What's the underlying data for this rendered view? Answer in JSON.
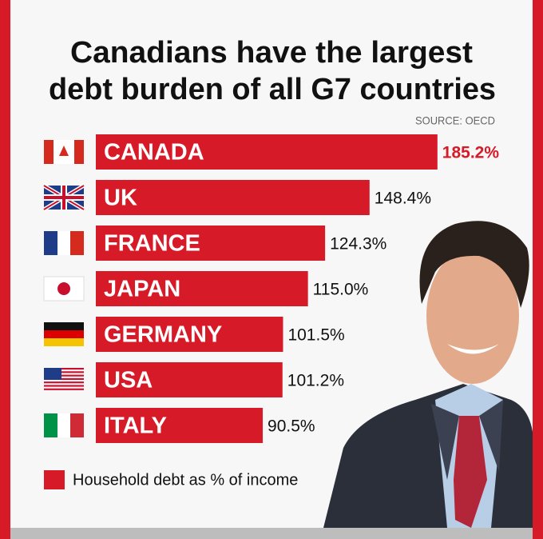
{
  "chart_data": {
    "type": "bar",
    "orientation": "horizontal",
    "title": [
      "Canadians have the largest",
      "debt burden of all G7 countries"
    ],
    "source": "SOURCE: OECD",
    "categories": [
      "CANADA",
      "UK",
      "FRANCE",
      "JAPAN",
      "GERMANY",
      "USA",
      "ITALY"
    ],
    "series": [
      {
        "name": "Household debt as % of income",
        "color": "#d71a28",
        "values": [
          185.2,
          148.4,
          124.3,
          115.0,
          101.5,
          101.2,
          90.5
        ],
        "value_labels": [
          "185.2%",
          "148.4%",
          "124.3%",
          "115.0%",
          "101.5%",
          "101.2%",
          "90.5%"
        ]
      }
    ]
  }
}
